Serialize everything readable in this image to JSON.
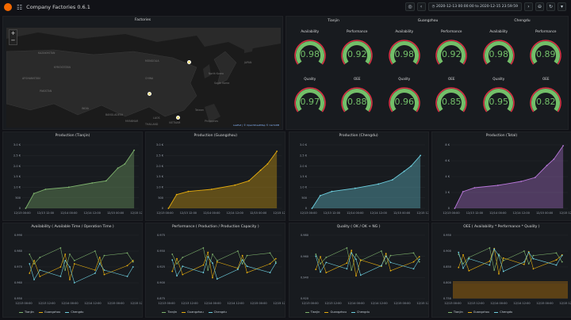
{
  "header": {
    "title": "Company Factories 0.6.1",
    "time_range": "2020-12-13 00:00:00 to 2020-12-15 23:59:59"
  },
  "map": {
    "title": "Factories",
    "labels": [
      "MONGOLIA",
      "KAZAKHSTAN",
      "KYRGYZSTAN",
      "AFGHANISTAN",
      "PAKISTAN",
      "INDIA",
      "CHINA",
      "JAPAN",
      "BANGLADESH",
      "MYANMAR",
      "THAILAND",
      "LAOS",
      "VIETNAM",
      "South Korea",
      "North Korea",
      "Taiwan",
      "Philippines"
    ],
    "attribution": "Leaflet | © OpenStreetMap © CartoDB"
  },
  "gauges": {
    "cities": [
      "Tianjin",
      "Guangzhou",
      "Chengdu"
    ],
    "top_labels": [
      "Availability",
      "Performance",
      "Availability",
      "Performance",
      "Availability",
      "Performance"
    ],
    "top_values": [
      "0.98",
      "0.92",
      "0.98",
      "0.92",
      "0.98",
      "0.89"
    ],
    "bottom_labels": [
      "Quality",
      "OEE",
      "Quality",
      "OEE",
      "Quality",
      "OEE"
    ],
    "bottom_values": [
      "0.97",
      "0.88",
      "0.96",
      "0.85",
      "0.95",
      "0.82"
    ]
  },
  "colors": {
    "tianjin": "#7eb26d",
    "guangzhou": "#e5ac0e",
    "chengdu": "#6ed0e0",
    "total": "#ba43a9",
    "gauge_green": "#73bf69",
    "gauge_red": "#e02f44"
  },
  "production_panels": [
    {
      "title": "Production (Tianjin)",
      "color": "#7eb26d",
      "yticks": [
        "0",
        "500",
        "1.0 K",
        "1.5 K",
        "2.0 K",
        "2.5 K",
        "3.0 K"
      ],
      "ymax": 3000
    },
    {
      "title": "Production (Guangzhou)",
      "color": "#e5ac0e",
      "yticks": [
        "0",
        "500",
        "1.0 K",
        "1.5 K",
        "2.0 K",
        "2.5 K",
        "3.0 K"
      ],
      "ymax": 3000
    },
    {
      "title": "Production (Chengdu)",
      "color": "#6ed0e0",
      "yticks": [
        "0",
        "500",
        "1.0 K",
        "1.5 K",
        "2.0 K",
        "2.5 K",
        "3.0 K"
      ],
      "ymax": 3000
    },
    {
      "title": "Production (Total)",
      "color": "#b877d9",
      "yticks": [
        "0",
        "2 K",
        "4 K",
        "6 K",
        "8 K"
      ],
      "ymax": 8000
    }
  ],
  "production_xticks": [
    "12/13 00:00",
    "12/13 12:00",
    "12/14 00:00",
    "12/14 12:00",
    "12/15 00:00",
    "12/15 12:00"
  ],
  "quality_panels": [
    {
      "title": "Availability ( Available Time / Operation Time )",
      "yticks": [
        "0.950",
        "0.960",
        "0.970",
        "0.980",
        "0.990"
      ],
      "band": false
    },
    {
      "title": "Performance ( Production / Production Capacity )",
      "yticks": [
        "0.875",
        "0.900",
        "0.925",
        "0.950",
        "0.975"
      ],
      "band": false
    },
    {
      "title": "Quality ( OK / OK + NG )",
      "yticks": [
        "0.920",
        "0.940",
        "0.960",
        "0.980"
      ],
      "band": false
    },
    {
      "title": "OEE ( Availability * Performance * Quality )",
      "yticks": [
        "0.750",
        "0.800",
        "0.850",
        "0.900",
        "0.950"
      ],
      "band": true
    }
  ],
  "quality_xticks": [
    "12/13 00:00",
    "12/13 12:00",
    "12/14 00:00",
    "12/14 12:00",
    "12/15 00:00",
    "12/15 12:00"
  ],
  "legend": [
    "Tianjin",
    "Guangzhou",
    "Chengdu"
  ],
  "chart_data": [
    {
      "type": "area",
      "title": "Production (Tianjin)",
      "x": [
        "12/13 00:00",
        "12/13 06:00",
        "12/13 12:00",
        "12/14 00:00",
        "12/14 12:00",
        "12/15 00:00",
        "12/15 06:00",
        "12/15 12:00",
        "12/15 20:00"
      ],
      "y": [
        0,
        700,
        900,
        1000,
        1200,
        1300,
        1900,
        2100,
        2750
      ]
    },
    {
      "type": "area",
      "title": "Production (Guangzhou)",
      "x": [
        "12/13 00:00",
        "12/13 06:00",
        "12/13 12:00",
        "12/14 00:00",
        "12/14 12:00",
        "12/15 00:00",
        "12/15 06:00",
        "12/15 12:00",
        "12/15 20:00"
      ],
      "y": [
        0,
        650,
        800,
        900,
        1100,
        1300,
        1800,
        2100,
        2700
      ]
    },
    {
      "type": "area",
      "title": "Production (Chengdu)",
      "x": [
        "12/13 00:00",
        "12/13 06:00",
        "12/13 12:00",
        "12/14 00:00",
        "12/14 12:00",
        "12/15 00:00",
        "12/15 06:00",
        "12/15 12:00",
        "12/15 20:00"
      ],
      "y": [
        0,
        600,
        800,
        950,
        1150,
        1350,
        1750,
        2000,
        2500
      ]
    },
    {
      "type": "area",
      "title": "Production (Total)",
      "x": [
        "12/13 00:00",
        "12/13 06:00",
        "12/13 12:00",
        "12/14 00:00",
        "12/14 12:00",
        "12/15 00:00",
        "12/15 06:00",
        "12/15 12:00",
        "12/15 20:00"
      ],
      "y": [
        0,
        2100,
        2600,
        2900,
        3400,
        3900,
        5400,
        6200,
        7900
      ]
    }
  ]
}
